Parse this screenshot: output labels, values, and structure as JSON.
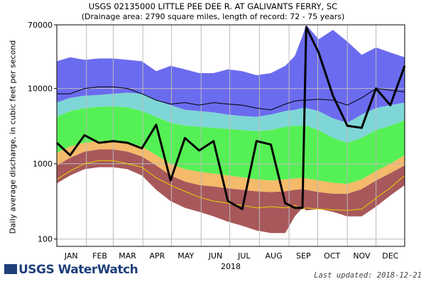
{
  "header": {
    "title": "USGS 02135000 LITTLE PEE DEE R. AT GALIVANTS FERRY, SC",
    "subtitle": "(Drainage area: 2790 square miles, length of record: 72 - 75 years)"
  },
  "footer": {
    "logo_text": "USGS WaterWatch",
    "updated": "Last updated: 2018-12-21"
  },
  "chart_data": {
    "type": "area",
    "title": "USGS 02135000 LITTLE PEE DEE R. AT GALIVANTS FERRY, SC",
    "subtitle": "(Drainage area: 2790 square miles, length of record: 72 - 75 years)",
    "ylabel": "Daily average discharge, in cubic feet per second",
    "xlabel": "2018",
    "yscale": "log",
    "ylim": [
      80,
      70000
    ],
    "y_ticks": [
      100,
      1000,
      10000,
      70000
    ],
    "y_tick_labels": [
      "100",
      "1000",
      "10000",
      "70000"
    ],
    "x_ticks": [
      "JAN",
      "FEB",
      "MAR",
      "APR",
      "MAY",
      "JUN",
      "JUL",
      "AUG",
      "SEP",
      "OCT",
      "NOV",
      "DEC"
    ],
    "grid": true,
    "colors": {
      "maxband": "#6b6bef",
      "band90": "#7fd6d6",
      "band75": "#55f055",
      "band25": "#f5ba6a",
      "band10": "#a8585a",
      "flow2018": "#000000",
      "median": "#000000",
      "minimum": "#e8d400"
    },
    "x": [
      1,
      15,
      30,
      45,
      60,
      75,
      90,
      105,
      120,
      135,
      150,
      165,
      180,
      195,
      210,
      225,
      240,
      250,
      258,
      262,
      275,
      290,
      305,
      320,
      335,
      350,
      365
    ],
    "series": [
      {
        "name": "p100",
        "values": [
          23000,
          26000,
          24000,
          25000,
          25000,
          24000,
          23000,
          17000,
          20000,
          18000,
          16000,
          16000,
          18000,
          17000,
          15000,
          16000,
          20000,
          27000,
          50000,
          70000,
          45000,
          60000,
          42000,
          28000,
          35000,
          30000,
          26000
        ]
      },
      {
        "name": "p90",
        "values": [
          6500,
          7500,
          8000,
          8200,
          8500,
          8800,
          8500,
          7000,
          6000,
          5200,
          5000,
          4800,
          4500,
          4300,
          4200,
          4500,
          5000,
          5200,
          5500,
          5500,
          5000,
          4000,
          3500,
          4500,
          5500,
          6000,
          6500
        ]
      },
      {
        "name": "p75",
        "values": [
          4200,
          5000,
          5500,
          5700,
          5800,
          5600,
          5000,
          4200,
          3500,
          3200,
          3100,
          3000,
          2900,
          2800,
          2700,
          2800,
          3100,
          3200,
          3200,
          3200,
          2800,
          2200,
          1900,
          2200,
          2800,
          3200,
          3800
        ]
      },
      {
        "name": "p25",
        "values": [
          1400,
          1700,
          1900,
          2000,
          2000,
          1900,
          1700,
          1300,
          1000,
          850,
          780,
          740,
          700,
          660,
          620,
          600,
          620,
          640,
          650,
          640,
          600,
          560,
          540,
          620,
          800,
          1000,
          1300
        ]
      },
      {
        "name": "p10",
        "values": [
          950,
          1200,
          1450,
          1550,
          1550,
          1450,
          1250,
          950,
          700,
          580,
          520,
          500,
          470,
          450,
          430,
          420,
          430,
          450,
          460,
          450,
          420,
          400,
          400,
          460,
          600,
          750,
          950
        ]
      },
      {
        "name": "p0",
        "values": [
          550,
          700,
          850,
          900,
          900,
          850,
          700,
          450,
          320,
          260,
          230,
          200,
          170,
          150,
          130,
          120,
          120,
          200,
          260,
          240,
          250,
          230,
          200,
          200,
          270,
          380,
          520
        ]
      },
      {
        "name": "median",
        "values": [
          8500,
          8500,
          10000,
          10500,
          10500,
          10000,
          8500,
          7000,
          6200,
          6500,
          6000,
          6500,
          6200,
          6000,
          5500,
          5200,
          6200,
          6800,
          7000,
          7000,
          7200,
          7000,
          6000,
          7500,
          10000,
          9500,
          9000
        ]
      },
      {
        "name": "minimum",
        "values": [
          620,
          800,
          1000,
          1100,
          1100,
          1000,
          900,
          650,
          520,
          430,
          360,
          320,
          300,
          280,
          260,
          270,
          260,
          280,
          250,
          260,
          250,
          245,
          240,
          250,
          350,
          480,
          700
        ]
      },
      {
        "name": "2018",
        "values": [
          1900,
          1300,
          2400,
          1900,
          2000,
          1900,
          1600,
          3300,
          600,
          2200,
          1500,
          2000,
          320,
          250,
          2000,
          1800,
          300,
          260,
          260,
          65000,
          30000,
          8000,
          3200,
          3000,
          10000,
          6000,
          20000
        ]
      }
    ]
  }
}
